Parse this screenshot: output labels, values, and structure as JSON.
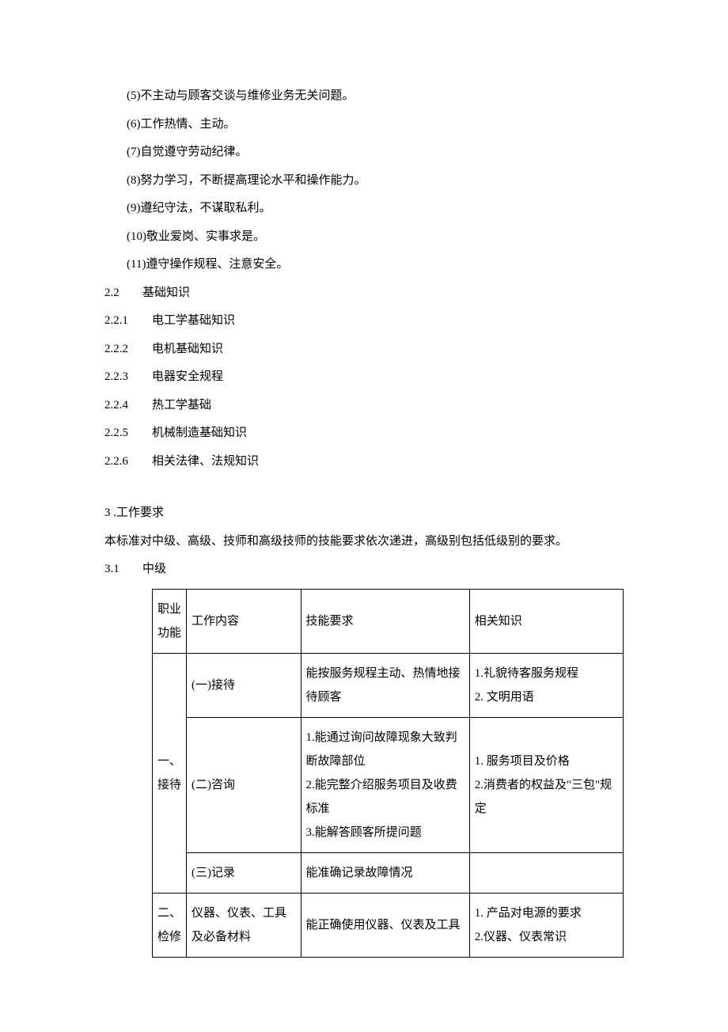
{
  "list_items": [
    "(5)不主动与顾客交谈与维修业务无关问题。",
    "(6)工作热情、主动。",
    "(7)自觉遵守劳动纪律。",
    "(8)努力学习，不断提高理论水平和操作能力。",
    "(9)遵纪守法，不谋取私利。",
    "(10)敬业爱岗、实事求是。",
    "(11)遵守操作规程、注意安全。"
  ],
  "headings": {
    "s22": {
      "num": "2.2",
      "text": "基础知识"
    },
    "s221": {
      "num": "2.2.1",
      "text": "电工学基础知识"
    },
    "s222": {
      "num": "2.2.2",
      "text": "电机基础知识"
    },
    "s223": {
      "num": "2.2.3",
      "text": "电器安全规程"
    },
    "s224": {
      "num": "2.2.4",
      "text": "热工学基础"
    },
    "s225": {
      "num": "2.2.5",
      "text": "机械制造基础知识"
    },
    "s226": {
      "num": "2.2.6",
      "text": "相关法律、法规知识"
    },
    "s3": {
      "num": "3 .",
      "text": "工作要求"
    },
    "s3_body": "本标准对中级、高级、技师和高级技师的技能要求依次递进，高级别包括低级别的要求。",
    "s31": {
      "num": "3.1",
      "text": "中级"
    }
  },
  "table": {
    "header": {
      "func": "职业功能",
      "content": "工作内容",
      "skill": "技能要求",
      "knowledge": "相关知识"
    },
    "rows": [
      {
        "func": "一、接待",
        "items": [
          {
            "content": "(一)接待",
            "skill": "能按服务规程主动、热情地接待顾客",
            "knowledge": "1.礼貌待客服务规程\n2. 文明用语"
          },
          {
            "content": "(二)咨询",
            "skill": "1.能通过询问故障现象大致判断故障部位\n2.能完整介绍服务项目及收费标准\n3.能解答顾客所提问题",
            "knowledge": "1. 服务项目及价格\n2.消费者的权益及\"三包\"规定"
          },
          {
            "content": "(三)记录",
            "skill": "能准确记录故障情况",
            "knowledge": ""
          }
        ]
      },
      {
        "func": "二、检修",
        "items": [
          {
            "content": "仪器、仪表、工具及必备材料",
            "skill": "能正确使用仪器、仪表及工具",
            "knowledge": "1. 产品对电源的要求\n2.仪器、仪表常识"
          }
        ]
      }
    ]
  },
  "colors": {
    "text": "#000000",
    "border": "#000000",
    "background": "#ffffff"
  },
  "typography": {
    "body_fontsize": 15,
    "line_height": 1.5,
    "table_line_height": 2.0
  }
}
